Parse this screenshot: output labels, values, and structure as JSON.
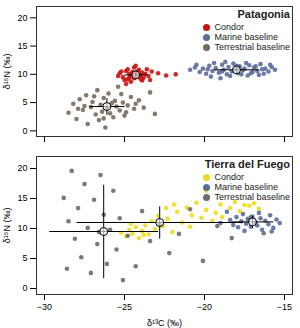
{
  "chart_data": [
    {
      "type": "scatter",
      "title": "Patagonia",
      "y_label": "δ¹⁵N (‰)",
      "xlim": [
        -30.5,
        -14.5
      ],
      "xticks": [
        -30,
        -25,
        -20,
        -15
      ],
      "ylim": [
        -1,
        22
      ],
      "yticks": [
        0,
        5,
        10,
        15,
        20
      ],
      "tick_labels": "y",
      "legend": "top-right",
      "series": [
        {
          "name": "Condor",
          "color": "#cc1111",
          "mean": [
            -24.3,
            9.9
          ],
          "sd": [
            0.7,
            0.8
          ],
          "points": [
            [
              -25.3,
              10.2
            ],
            [
              -25.1,
              9.5
            ],
            [
              -24.9,
              10.6
            ],
            [
              -24.8,
              9.1
            ],
            [
              -24.7,
              10.1
            ],
            [
              -24.6,
              9.8
            ],
            [
              -24.5,
              10.4
            ],
            [
              -24.4,
              9.3
            ],
            [
              -24.3,
              10.0
            ],
            [
              -24.2,
              9.6
            ],
            [
              -24.1,
              10.8
            ],
            [
              -24.0,
              9.9
            ],
            [
              -23.9,
              10.3
            ],
            [
              -23.8,
              9.4
            ],
            [
              -23.7,
              10.1
            ],
            [
              -23.5,
              9.7
            ],
            [
              -23.3,
              10.5
            ],
            [
              -24.6,
              8.7
            ],
            [
              -25.0,
              9.0
            ],
            [
              -24.4,
              11.2
            ],
            [
              -23.9,
              8.9
            ],
            [
              -24.8,
              10.9
            ],
            [
              -25.4,
              9.7
            ],
            [
              -23.6,
              10.9
            ],
            [
              -24.2,
              10.5
            ],
            [
              -24.0,
              9.2
            ],
            [
              -22.9,
              10.2
            ],
            [
              -22.4,
              9.8
            ],
            [
              -21.8,
              10.0
            ],
            [
              -24.7,
              9.4
            ],
            [
              -24.3,
              11.5
            ],
            [
              -25.2,
              10.5
            ],
            [
              -23.4,
              9.0
            ],
            [
              -24.9,
              8.3
            ]
          ]
        },
        {
          "name": "Marine baseline",
          "color": "#5b6d9c",
          "mean": [
            -18.0,
            10.8
          ],
          "sd": [
            1.4,
            0.7
          ],
          "points": [
            [
              -20.9,
              10.8
            ],
            [
              -20.6,
              11.2
            ],
            [
              -20.3,
              10.4
            ],
            [
              -20.1,
              11.0
            ],
            [
              -19.9,
              10.1
            ],
            [
              -19.7,
              11.5
            ],
            [
              -19.5,
              10.6
            ],
            [
              -19.3,
              11.1
            ],
            [
              -19.1,
              10.3
            ],
            [
              -18.9,
              11.7
            ],
            [
              -18.8,
              10.8
            ],
            [
              -18.6,
              10.0
            ],
            [
              -18.5,
              11.3
            ],
            [
              -18.3,
              10.5
            ],
            [
              -18.2,
              11.9
            ],
            [
              -18.1,
              10.9
            ],
            [
              -17.9,
              10.2
            ],
            [
              -17.8,
              11.4
            ],
            [
              -17.6,
              10.7
            ],
            [
              -17.5,
              11.0
            ],
            [
              -17.3,
              9.8
            ],
            [
              -17.2,
              11.6
            ],
            [
              -17.0,
              10.4
            ],
            [
              -16.9,
              11.2
            ],
            [
              -16.7,
              10.6
            ],
            [
              -16.5,
              11.8
            ],
            [
              -16.3,
              10.1
            ],
            [
              -16.2,
              11.0
            ],
            [
              -16.0,
              10.5
            ],
            [
              -15.8,
              11.3
            ],
            [
              -15.6,
              10.8
            ],
            [
              -19.6,
              9.6
            ],
            [
              -18.7,
              12.2
            ],
            [
              -17.4,
              12.0
            ],
            [
              -19.0,
              9.3
            ],
            [
              -18.4,
              9.7
            ],
            [
              -17.7,
              10.0
            ],
            [
              -16.6,
              9.9
            ],
            [
              -20.5,
              11.7
            ],
            [
              -19.8,
              10.9
            ],
            [
              -18.0,
              11.5
            ],
            [
              -17.1,
              10.2
            ],
            [
              -16.4,
              10.9
            ],
            [
              -15.9,
              11.7
            ],
            [
              -18.9,
              10.5
            ],
            [
              -17.9,
              11.1
            ],
            [
              -19.4,
              12.0
            ],
            [
              -16.8,
              11.4
            ]
          ]
        },
        {
          "name": "Terrestrial baseline",
          "color": "#7b6a5b",
          "mean": [
            -26.1,
            4.3
          ],
          "sd": [
            1.1,
            1.5
          ],
          "points": [
            [
              -28.5,
              3.2
            ],
            [
              -28.2,
              4.8
            ],
            [
              -28.0,
              2.1
            ],
            [
              -27.8,
              5.6
            ],
            [
              -27.6,
              3.7
            ],
            [
              -27.4,
              6.3
            ],
            [
              -27.3,
              1.2
            ],
            [
              -27.1,
              4.2
            ],
            [
              -27.0,
              5.1
            ],
            [
              -26.8,
              2.9
            ],
            [
              -26.7,
              7.2
            ],
            [
              -26.5,
              4.6
            ],
            [
              -26.4,
              3.4
            ],
            [
              -26.3,
              5.8
            ],
            [
              -26.2,
              0.6
            ],
            [
              -26.1,
              4.0
            ],
            [
              -26.0,
              6.6
            ],
            [
              -25.9,
              3.1
            ],
            [
              -25.8,
              4.9
            ],
            [
              -25.7,
              2.4
            ],
            [
              -25.6,
              5.3
            ],
            [
              -25.5,
              4.3
            ],
            [
              -25.4,
              7.8
            ],
            [
              -25.3,
              3.6
            ],
            [
              -25.1,
              5.0
            ],
            [
              -25.0,
              2.7
            ],
            [
              -24.8,
              4.5
            ],
            [
              -24.6,
              6.0
            ],
            [
              -24.4,
              3.9
            ],
            [
              -24.1,
              5.4
            ],
            [
              -23.8,
              4.1
            ],
            [
              -23.4,
              6.8
            ],
            [
              -27.9,
              3.9
            ],
            [
              -26.9,
              6.1
            ],
            [
              -26.6,
              1.9
            ],
            [
              -25.2,
              6.5
            ],
            [
              -24.9,
              3.3
            ],
            [
              -27.5,
              4.4
            ],
            [
              -26.3,
              2.2
            ],
            [
              -24.3,
              4.8
            ],
            [
              -23.1,
              3.0
            ]
          ]
        }
      ]
    },
    {
      "type": "scatter",
      "title": "Tierra del Fuego",
      "x_label": "δ¹³C (‰)",
      "y_label": "δ¹⁵N (‰)",
      "xlim": [
        -30.5,
        -14.5
      ],
      "xticks": [
        -30,
        -25,
        -20,
        -15
      ],
      "ylim": [
        -1,
        22
      ],
      "yticks": [
        0,
        5,
        10,
        15,
        20
      ],
      "tick_labels": true,
      "legend": "top-right",
      "series": [
        {
          "name": "Condor",
          "color": "#f0dc1e",
          "mean": [
            -22.8,
            11.0
          ],
          "sd": [
            5.2,
            2.7
          ],
          "points": [
            [
              -25.2,
              9.3
            ],
            [
              -24.9,
              8.7
            ],
            [
              -24.7,
              9.8
            ],
            [
              -24.5,
              9.1
            ],
            [
              -24.3,
              10.2
            ],
            [
              -24.1,
              8.4
            ],
            [
              -23.9,
              9.6
            ],
            [
              -23.7,
              10.5
            ],
            [
              -23.5,
              9.0
            ],
            [
              -23.3,
              11.2
            ],
            [
              -23.1,
              9.9
            ],
            [
              -22.9,
              12.1
            ],
            [
              -22.6,
              10.4
            ],
            [
              -22.3,
              11.6
            ],
            [
              -22.0,
              9.4
            ],
            [
              -21.7,
              12.8
            ],
            [
              -21.4,
              11.0
            ],
            [
              -21.1,
              13.5
            ],
            [
              -20.8,
              12.2
            ],
            [
              -20.5,
              14.3
            ],
            [
              -20.2,
              11.8
            ],
            [
              -19.9,
              13.1
            ],
            [
              -19.8,
              15.2
            ],
            [
              -19.3,
              12.6
            ],
            [
              -19.0,
              14.0
            ],
            [
              -19.9,
              16.3
            ],
            [
              -18.4,
              13.4
            ],
            [
              -18.1,
              14.4
            ],
            [
              -17.8,
              12.9
            ],
            [
              -17.5,
              13.9
            ],
            [
              -17.2,
              13.8
            ],
            [
              -16.9,
              14.2
            ],
            [
              -16.6,
              13.3
            ],
            [
              -24.6,
              10.8
            ],
            [
              -23.8,
              8.9
            ],
            [
              -22.4,
              13.4
            ],
            [
              -20.9,
              10.3
            ],
            [
              -21.9,
              14.0
            ],
            [
              -19.5,
              11.3
            ],
            [
              -18.9,
              11.9
            ]
          ]
        },
        {
          "name": "Marine baseline",
          "color": "#5b6d9c",
          "mean": [
            -17.0,
            11.1
          ],
          "sd": [
            1.3,
            1.0
          ],
          "points": [
            [
              -18.4,
              11.4
            ],
            [
              -18.2,
              10.6
            ],
            [
              -18.0,
              11.9
            ],
            [
              -17.9,
              10.2
            ],
            [
              -17.7,
              11.2
            ],
            [
              -17.6,
              12.4
            ],
            [
              -17.4,
              10.8
            ],
            [
              -17.3,
              11.6
            ],
            [
              -17.1,
              10.3
            ],
            [
              -17.0,
              12.0
            ],
            [
              -16.8,
              11.0
            ],
            [
              -16.7,
              10.5
            ],
            [
              -16.5,
              11.7
            ],
            [
              -16.4,
              9.8
            ],
            [
              -16.2,
              11.3
            ],
            [
              -16.0,
              10.7
            ],
            [
              -15.9,
              12.2
            ],
            [
              -15.7,
              10.1
            ],
            [
              -15.5,
              11.5
            ],
            [
              -15.3,
              10.9
            ],
            [
              -18.6,
              12.8
            ],
            [
              -17.5,
              9.6
            ],
            [
              -16.6,
              12.6
            ],
            [
              -15.8,
              9.5
            ],
            [
              -19.0,
              10.9
            ]
          ]
        },
        {
          "name": "Terrestrial baseline",
          "color": "#6b6b6b",
          "mean": [
            -26.3,
            9.5
          ],
          "sd": [
            3.4,
            7.8
          ],
          "points": [
            [
              -28.8,
              15.1
            ],
            [
              -28.5,
              11.2
            ],
            [
              -28.3,
              19.6
            ],
            [
              -28.1,
              8.3
            ],
            [
              -27.9,
              13.4
            ],
            [
              -27.7,
              5.2
            ],
            [
              -27.5,
              17.4
            ],
            [
              -27.3,
              10.1
            ],
            [
              -27.1,
              2.6
            ],
            [
              -26.9,
              14.8
            ],
            [
              -26.7,
              7.4
            ],
            [
              -26.5,
              18.9
            ],
            [
              -26.3,
              12.3
            ],
            [
              -26.1,
              4.1
            ],
            [
              -25.9,
              9.8
            ],
            [
              -25.7,
              16.3
            ],
            [
              -25.5,
              6.5
            ],
            [
              -25.3,
              11.7
            ],
            [
              -25.1,
              1.4
            ],
            [
              -24.8,
              8.8
            ],
            [
              -24.3,
              3.7
            ],
            [
              -23.9,
              12.9
            ],
            [
              -23.4,
              7.9
            ],
            [
              -22.8,
              10.6
            ],
            [
              -22.2,
              5.9
            ],
            [
              -21.6,
              9.1
            ],
            [
              -20.9,
              13.2
            ],
            [
              -20.1,
              4.6
            ],
            [
              -19.2,
              10.4
            ],
            [
              -18.3,
              8.4
            ],
            [
              -17.1,
              11.9
            ],
            [
              -16.3,
              9.2
            ],
            [
              -28.6,
              3.3
            ],
            [
              -26.6,
              9.4
            ]
          ]
        }
      ]
    }
  ]
}
